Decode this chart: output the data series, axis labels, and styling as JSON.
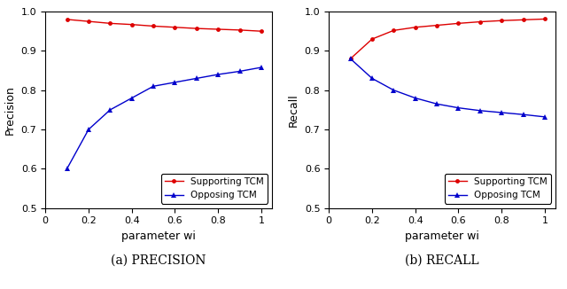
{
  "wi": [
    0.1,
    0.2,
    0.3,
    0.4,
    0.5,
    0.6,
    0.7,
    0.8,
    0.9,
    1.0
  ],
  "precision_supporting": [
    0.98,
    0.975,
    0.97,
    0.967,
    0.963,
    0.96,
    0.957,
    0.955,
    0.953,
    0.95
  ],
  "precision_opposing": [
    0.6,
    0.7,
    0.75,
    0.78,
    0.81,
    0.82,
    0.83,
    0.84,
    0.848,
    0.858
  ],
  "recall_supporting": [
    0.88,
    0.93,
    0.952,
    0.96,
    0.965,
    0.97,
    0.974,
    0.977,
    0.979,
    0.981
  ],
  "recall_opposing": [
    0.88,
    0.83,
    0.8,
    0.78,
    0.765,
    0.755,
    0.748,
    0.743,
    0.738,
    0.732
  ],
  "color_supporting": "#dd0000",
  "color_opposing": "#0000cc",
  "xlabel": "parameter wi",
  "ylabel_left": "Precision",
  "ylabel_right": "Recall",
  "label_supporting": "Supporting TCM",
  "label_opposing": "Opposing TCM",
  "caption_left": "(a) PRECISION",
  "caption_right": "(b) RECALL",
  "ylim": [
    0.5,
    1.0
  ],
  "xlim": [
    0.05,
    1.05
  ],
  "xticks": [
    0,
    0.2,
    0.4,
    0.6,
    0.8,
    1.0
  ],
  "xticklabels": [
    "0",
    "0.2",
    "0.4",
    "0.6",
    "0.8",
    "1"
  ],
  "yticks": [
    0.5,
    0.6,
    0.7,
    0.8,
    0.9,
    1.0
  ],
  "yticklabels": [
    "0.5",
    "0.6",
    "0.7",
    "0.8",
    "0.9",
    "1.0"
  ]
}
